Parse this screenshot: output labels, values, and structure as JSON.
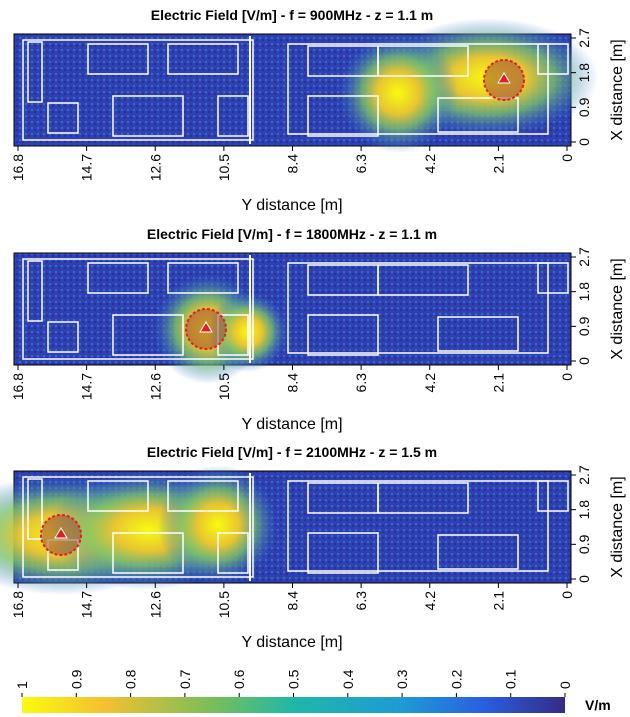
{
  "chart_data": [
    {
      "type": "heatmap",
      "title": "Electric Field [V/m] - f = 900MHz - z = 1.1 m",
      "x_label": "Y distance [m]",
      "y_label": "X distance [m]",
      "xlim": [
        16.8,
        0
      ],
      "xticks": [
        16.8,
        14.7,
        12.6,
        10.5,
        8.4,
        6.3,
        4.2,
        2.1,
        0
      ],
      "ylim": [
        0,
        2.7
      ],
      "yticks": [
        0,
        0.9,
        1.8,
        2.7
      ]
    },
    {
      "type": "heatmap",
      "title": "Electric Field [V/m] - f = 1800MHz - z = 1.1 m",
      "x_label": "Y distance [m]",
      "y_label": "X distance [m]",
      "xlim": [
        16.8,
        0
      ],
      "xticks": [
        16.8,
        14.7,
        12.6,
        10.5,
        8.4,
        6.3,
        4.2,
        2.1,
        0
      ],
      "ylim": [
        0,
        2.7
      ],
      "yticks": [
        0,
        0.9,
        1.8,
        2.7
      ]
    },
    {
      "type": "heatmap",
      "title": "Electric Field [V/m] - f = 2100MHz - z = 1.5 m",
      "x_label": "Y distance [m]",
      "y_label": "X distance [m]",
      "xlim": [
        16.8,
        0
      ],
      "xticks": [
        16.8,
        14.7,
        12.6,
        10.5,
        8.4,
        6.3,
        4.2,
        2.1,
        0
      ],
      "ylim": [
        0,
        2.7
      ],
      "yticks": [
        0,
        0.9,
        1.8,
        2.7
      ]
    }
  ],
  "colorbar": {
    "label": "V/m",
    "lim": [
      1,
      0
    ],
    "ticks": [
      1,
      0.9,
      0.8,
      0.7,
      0.6,
      0.5,
      0.4,
      0.3,
      0.2,
      0.1,
      0
    ]
  }
}
